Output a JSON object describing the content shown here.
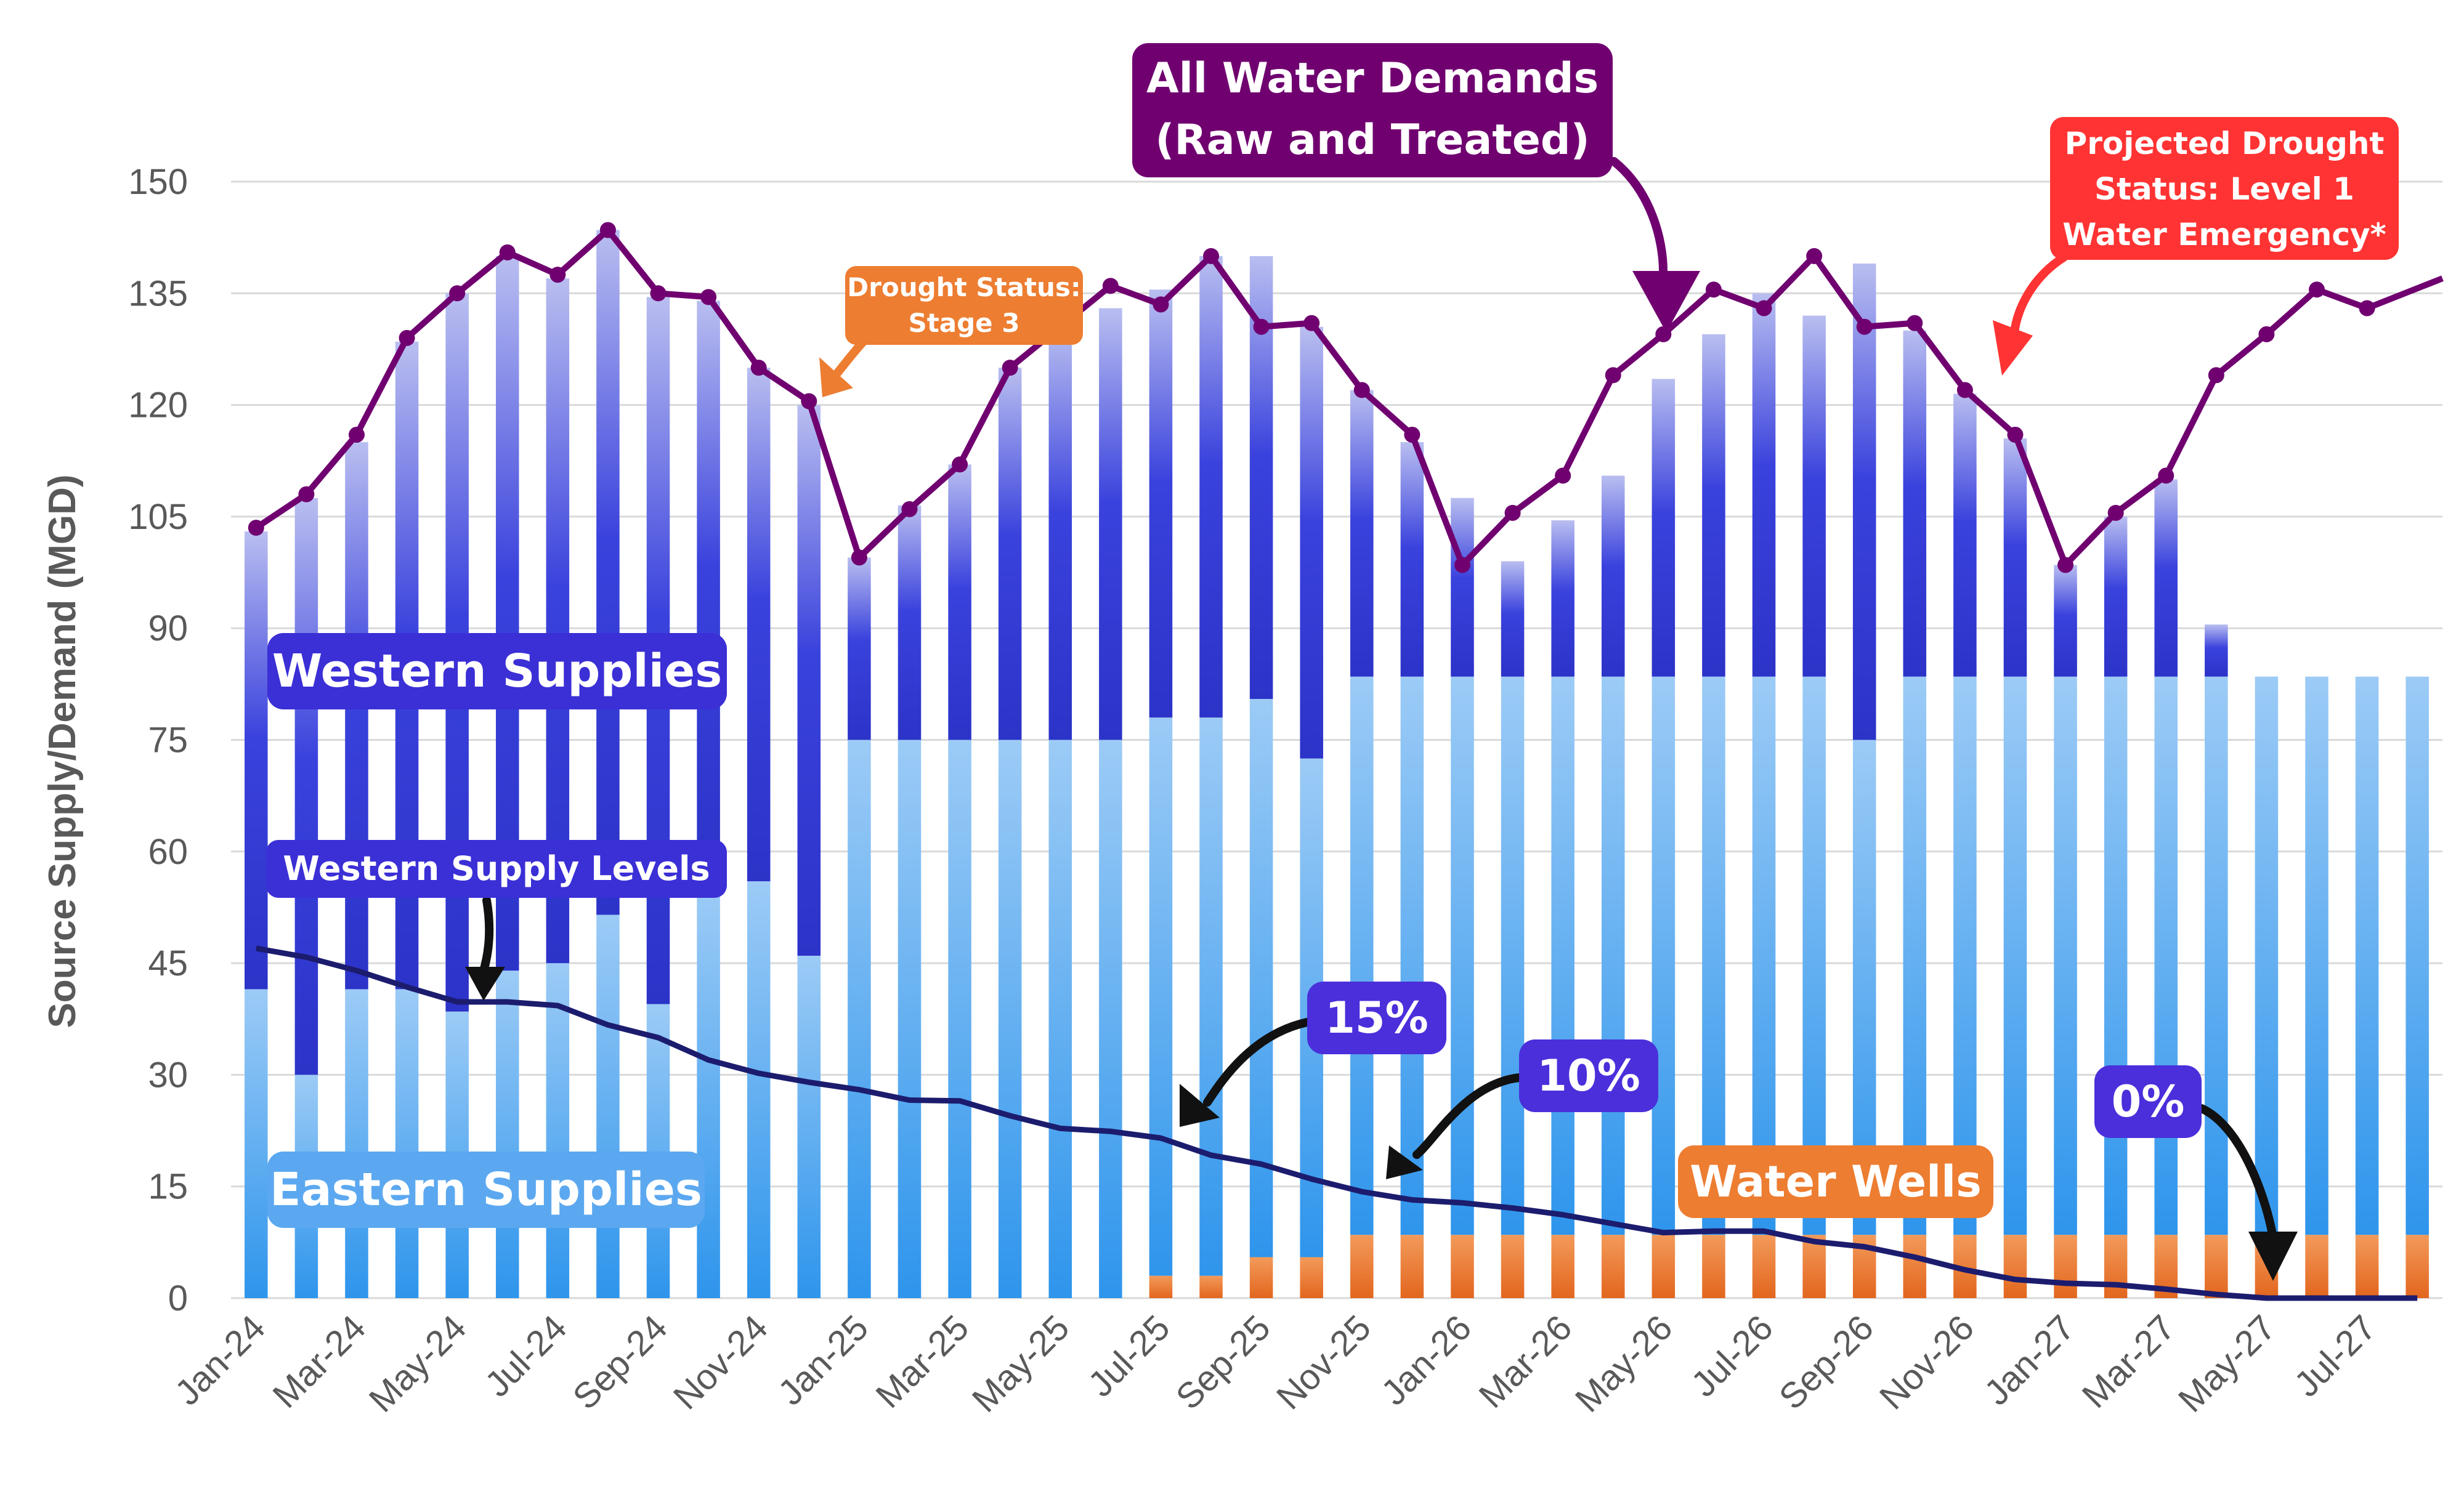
{
  "chart_data": {
    "type": "bar",
    "title": "",
    "xlabel": "",
    "ylabel": "Source Supply/Demand (MGD)",
    "ylim": [
      0,
      150
    ],
    "yticks": [
      0,
      15,
      30,
      45,
      60,
      75,
      90,
      105,
      120,
      135,
      150
    ],
    "grid": true,
    "months": [
      "Jan-24",
      "Feb-24",
      "Mar-24",
      "Apr-24",
      "May-24",
      "Jun-24",
      "Jul-24",
      "Aug-24",
      "Sep-24",
      "Oct-24",
      "Nov-24",
      "Dec-24",
      "Jan-25",
      "Feb-25",
      "Mar-25",
      "Apr-25",
      "May-25",
      "Jun-25",
      "Jul-25",
      "Aug-25",
      "Sep-25",
      "Oct-25",
      "Nov-25",
      "Dec-25",
      "Jan-26",
      "Feb-26",
      "Mar-26",
      "Apr-26",
      "May-26",
      "Jun-26",
      "Jul-26",
      "Aug-26",
      "Sep-26",
      "Oct-26",
      "Nov-26",
      "Dec-26",
      "Jan-27",
      "Feb-27",
      "Mar-27",
      "Apr-27",
      "May-27",
      "Jun-27",
      "Jul-27",
      "Aug-27"
    ],
    "x_tick_labels": [
      "Jan-24",
      "Mar-24",
      "May-24",
      "Jul-24",
      "Sep-24",
      "Nov-24",
      "Jan-25",
      "Mar-25",
      "May-25",
      "Jul-25",
      "Sep-25",
      "Nov-25",
      "Jan-26",
      "Mar-26",
      "May-26",
      "Jul-26",
      "Sep-26",
      "Nov-26",
      "Jan-27",
      "Mar-27",
      "May-27",
      "Jul-27"
    ],
    "series": [
      {
        "name": "Water Wells",
        "color": "#ED7D31",
        "values": [
          0,
          0,
          0,
          0,
          0,
          0,
          0,
          0,
          0,
          0,
          0,
          0,
          0,
          0,
          0,
          0,
          0,
          0,
          3,
          3,
          5.5,
          5.5,
          8.5,
          8.5,
          8.5,
          8.5,
          8.5,
          8.5,
          8.5,
          8.5,
          8.5,
          8.5,
          8.5,
          8.5,
          8.5,
          8.5,
          8.5,
          8.5,
          8.5,
          8.5,
          8.5,
          8.5,
          8.5,
          8.5
        ]
      },
      {
        "name": "Eastern Supplies",
        "color": "#5BA8F0",
        "values": [
          41.5,
          30,
          41.5,
          41.5,
          38.5,
          44,
          45,
          51.5,
          39.5,
          55,
          56,
          46,
          75,
          75,
          75,
          75,
          75,
          75,
          75,
          75,
          75,
          67,
          75,
          75,
          75,
          75,
          75,
          75,
          75,
          75,
          75,
          75,
          66.5,
          75,
          75,
          75,
          75,
          75,
          75,
          75,
          75,
          75,
          75,
          75
        ]
      },
      {
        "name": "Western Supplies",
        "color": "#3B3BD9",
        "values": [
          61.5,
          77.5,
          73.5,
          87,
          96.5,
          96,
          92,
          92,
          95,
          79,
          69,
          74,
          24.5,
          31.5,
          37,
          50,
          55.5,
          58,
          57.5,
          62,
          59.5,
          58,
          38.5,
          31.5,
          24,
          15.5,
          21,
          27,
          40,
          46,
          51.5,
          48.5,
          64,
          46.5,
          38,
          32,
          15,
          21.5,
          26.5,
          7,
          0,
          0,
          0,
          0
        ]
      }
    ],
    "line_series": [
      {
        "name": "All Water Demands (Raw and Treated)",
        "color": "#700070",
        "values": [
          103.5,
          108,
          116,
          129,
          135,
          140.5,
          137.5,
          143.5,
          135,
          134.5,
          125,
          120.5,
          99.5,
          106,
          112,
          125,
          130.5,
          136,
          133.5,
          140,
          130.5,
          131,
          122,
          116,
          98.5,
          105.5,
          110.5,
          124,
          129.5,
          135.5,
          133,
          140,
          130.5,
          131,
          122,
          116,
          98.5,
          105.5,
          110.5,
          124,
          129.5,
          135.5,
          133,
          137
        ]
      },
      {
        "name": "Western Supply Levels",
        "color": "#1C1C6E",
        "values": [
          47,
          45.8,
          44,
          41.8,
          39.8,
          39.8,
          39.3,
          36.7,
          35,
          32,
          30.2,
          29,
          28,
          26.6,
          26.5,
          24.5,
          22.8,
          22.4,
          21.5,
          19.2,
          18,
          16,
          14.3,
          13.2,
          12.8,
          12.1,
          11.2,
          10,
          8.8,
          9,
          9,
          7.6,
          6.9,
          5.5,
          3.8,
          2.5,
          2,
          1.8,
          1.2,
          0.5,
          0,
          0,
          0,
          0
        ]
      }
    ],
    "annotations": {
      "demand": [
        "All Water Demands",
        "(Raw and Treated)"
      ],
      "drought_stage": [
        "Drought Status:",
        "Stage 3"
      ],
      "projected": [
        "Projected Drought",
        "Status: Level 1",
        "Water Emergency*"
      ],
      "western_supplies": "Western Supplies",
      "western_levels": "Western Supply Levels",
      "eastern_supplies": "Eastern Supplies",
      "water_wells": "Water Wells",
      "pct_15": "15%",
      "pct_10": "10%",
      "pct_0": "0%"
    },
    "colors": {
      "demand_callout": "#700070",
      "drought_callout": "#ED7D31",
      "projected_callout": "#FF3333",
      "western_callout": "#3B2FD6",
      "eastern_callout": "#5BA8F0",
      "wells_callout": "#ED7D31",
      "pct_callout": "#4A2FDB"
    }
  }
}
